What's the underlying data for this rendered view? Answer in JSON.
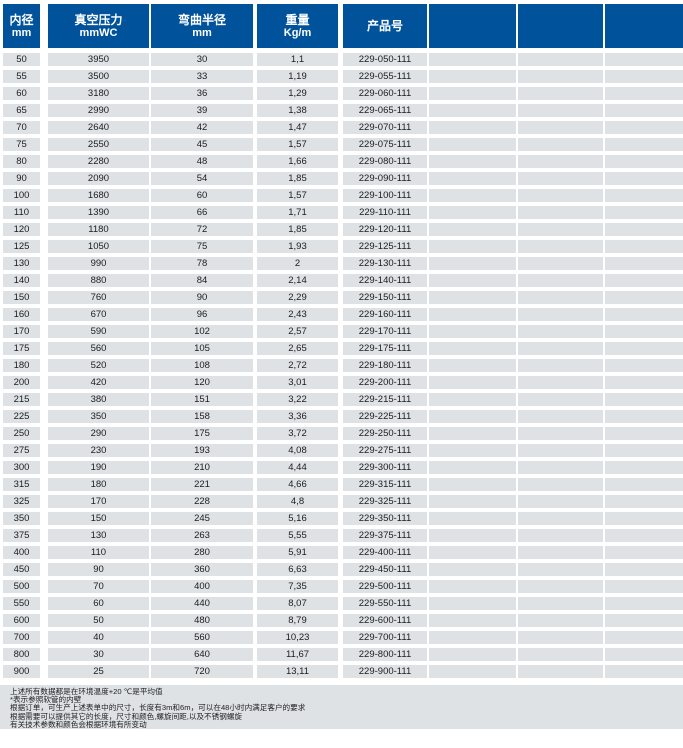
{
  "table": {
    "columns": [
      {
        "line1": "内径",
        "line2": "mm"
      },
      {
        "line1": "真空压力",
        "line2": "mmWC"
      },
      {
        "line1": "弯曲半径",
        "line2": "mm"
      },
      {
        "line1": "重量",
        "line2": "Kg/m"
      },
      {
        "line1": "产品号",
        "line2": ""
      },
      {
        "line1": "",
        "line2": ""
      },
      {
        "line1": "",
        "line2": ""
      },
      {
        "line1": "",
        "line2": ""
      }
    ],
    "column_names": [
      "inner-diameter",
      "vacuum-pressure",
      "bend-radius",
      "weight",
      "product-number",
      "empty-1",
      "empty-2",
      "empty-3"
    ],
    "rows": [
      [
        "50",
        "3950",
        "30",
        "1,1",
        "229-050-111"
      ],
      [
        "55",
        "3500",
        "33",
        "1,19",
        "229-055-111"
      ],
      [
        "60",
        "3180",
        "36",
        "1,29",
        "229-060-111"
      ],
      [
        "65",
        "2990",
        "39",
        "1,38",
        "229-065-111"
      ],
      [
        "70",
        "2640",
        "42",
        "1,47",
        "229-070-111"
      ],
      [
        "75",
        "2550",
        "45",
        "1,57",
        "229-075-111"
      ],
      [
        "80",
        "2280",
        "48",
        "1,66",
        "229-080-111"
      ],
      [
        "90",
        "2090",
        "54",
        "1,85",
        "229-090-111"
      ],
      [
        "100",
        "1680",
        "60",
        "1,57",
        "229-100-111"
      ],
      [
        "110",
        "1390",
        "66",
        "1,71",
        "229-110-111"
      ],
      [
        "120",
        "1180",
        "72",
        "1,85",
        "229-120-111"
      ],
      [
        "125",
        "1050",
        "75",
        "1,93",
        "229-125-111"
      ],
      [
        "130",
        "990",
        "78",
        "2",
        "229-130-111"
      ],
      [
        "140",
        "880",
        "84",
        "2,14",
        "229-140-111"
      ],
      [
        "150",
        "760",
        "90",
        "2,29",
        "229-150-111"
      ],
      [
        "160",
        "670",
        "96",
        "2,43",
        "229-160-111"
      ],
      [
        "170",
        "590",
        "102",
        "2,57",
        "229-170-111"
      ],
      [
        "175",
        "560",
        "105",
        "2,65",
        "229-175-111"
      ],
      [
        "180",
        "520",
        "108",
        "2,72",
        "229-180-111"
      ],
      [
        "200",
        "420",
        "120",
        "3,01",
        "229-200-111"
      ],
      [
        "215",
        "380",
        "151",
        "3,22",
        "229-215-111"
      ],
      [
        "225",
        "350",
        "158",
        "3,36",
        "229-225-111"
      ],
      [
        "250",
        "290",
        "175",
        "3,72",
        "229-250-111"
      ],
      [
        "275",
        "230",
        "193",
        "4,08",
        "229-275-111"
      ],
      [
        "300",
        "190",
        "210",
        "4,44",
        "229-300-111"
      ],
      [
        "315",
        "180",
        "221",
        "4,66",
        "229-315-111"
      ],
      [
        "325",
        "170",
        "228",
        "4,8",
        "229-325-111"
      ],
      [
        "350",
        "150",
        "245",
        "5,16",
        "229-350-111"
      ],
      [
        "375",
        "130",
        "263",
        "5,55",
        "229-375-111"
      ],
      [
        "400",
        "110",
        "280",
        "5,91",
        "229-400-111"
      ],
      [
        "450",
        "90",
        "360",
        "6,63",
        "229-450-111"
      ],
      [
        "500",
        "70",
        "400",
        "7,35",
        "229-500-111"
      ],
      [
        "550",
        "60",
        "440",
        "8,07",
        "229-550-111"
      ],
      [
        "600",
        "50",
        "480",
        "8,79",
        "229-600-111"
      ],
      [
        "700",
        "40",
        "560",
        "10,23",
        "229-700-111"
      ],
      [
        "800",
        "30",
        "640",
        "11,67",
        "229-800-111"
      ],
      [
        "900",
        "25",
        "720",
        "13,11",
        "229-900-111"
      ]
    ]
  },
  "notes": [
    "上述所有数据都是在环境温度+20 ℃是平均值",
    "*表示参照软管的内壁",
    "根据订单，可生产上述表单中的尺寸，长度有3m和6m，可以在48小时内满足客户的要求",
    "根据需要可以提供其它的长度，尺寸和颜色,螺旋间距,以及不锈钢螺旋",
    "有关技术参数和颜色会根据环境有所变动"
  ],
  "colors": {
    "header_blue": "#00539b",
    "row_gray": "#dee2e5",
    "header_text": "#ffffff",
    "cell_text": "#1c1c1c"
  }
}
